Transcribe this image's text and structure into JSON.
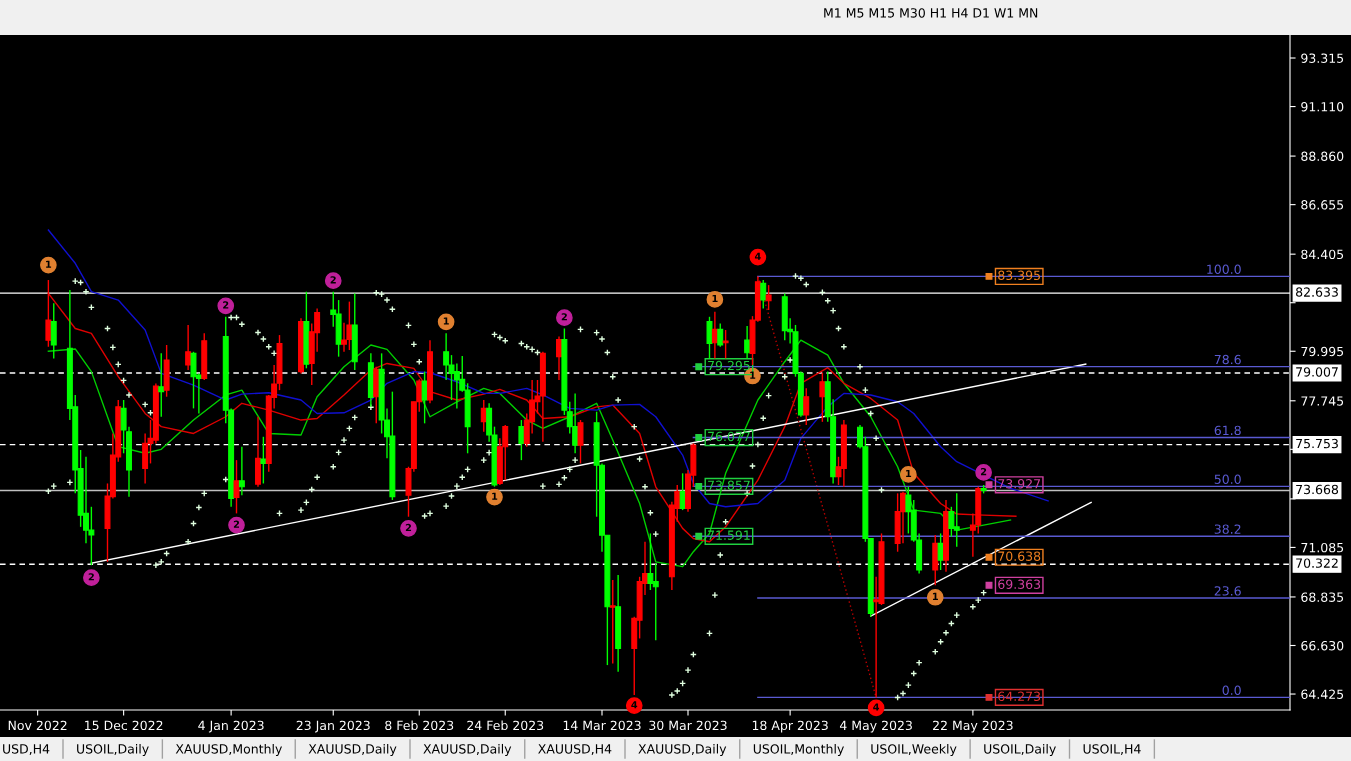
{
  "chart_data": {
    "type": "candlestick",
    "subtitle": "M1 M5 M15 M30 H1 H4 D1 W1 MN",
    "annotations": [
      "USD,H4",
      "USOIL,Daily",
      "XAUUSD,Monthly",
      "XAUUSD,Daily",
      "XAUUSD,Daily",
      "XAUUSD,H4",
      "XAUUSD,Daily",
      "USOIL,Monthly",
      "USOIL,Weekly",
      "USOIL,Daily",
      "USOIL,H4",
      {
        "text": "1",
        "x": "2022-12-01",
        "y": 83.91
      },
      {
        "text": "1",
        "x": "2023-02-13",
        "y": 81.33
      },
      {
        "text": "1",
        "x": "2023-02-22",
        "y": 73.37
      },
      {
        "text": "1",
        "x": "2023-04-04",
        "y": 82.35
      },
      {
        "text": "1",
        "x": "2023-04-11",
        "y": 78.87
      },
      {
        "text": "1",
        "x": "2023-05-10",
        "y": 74.4
      },
      {
        "text": "1",
        "x": "2023-05-15",
        "y": 68.82
      },
      {
        "text": "2",
        "x": "2022-12-09",
        "y": 69.71
      },
      {
        "text": "2",
        "x": "2023-01-03",
        "y": 82.06
      },
      {
        "text": "2",
        "x": "2023-01-05",
        "y": 72.1
      },
      {
        "text": "2",
        "x": "2023-01-23",
        "y": 83.2
      },
      {
        "text": "2",
        "x": "2023-02-06",
        "y": 71.95
      },
      {
        "text": "2",
        "x": "2023-03-07",
        "y": 81.52
      },
      {
        "text": "2",
        "x": "2023-05-24",
        "y": 74.49
      },
      {
        "text": "4",
        "x": "2023-03-20",
        "y": 63.9
      },
      {
        "text": "4",
        "x": "2023-04-12",
        "y": 84.27
      },
      {
        "text": "4",
        "x": "2023-05-04",
        "y": 63.8
      }
    ],
    "colors": [
      "#ff0000",
      "#00ff00",
      "#00ff00",
      "#00ff00",
      "#00ff00",
      "#00ff00",
      "#00ff00",
      "#ff0000",
      "#ff0000",
      "#ff0000",
      "#00ff00",
      "#00ff00",
      "#ff0000",
      "#ff0000",
      "#ff0000",
      "#00ff00",
      "#ff0000",
      "#ff0000",
      "#00ff00",
      "#00ff00",
      "#ff0000",
      "#00ff00",
      "#00ff00",
      "#ff0000",
      "#00ff00",
      "#ff0000",
      "#00ff00",
      "#ff0000",
      "#ff0000",
      "#ff0000",
      "#ff0000",
      "#00ff00",
      "#ff0000",
      "#ff0000",
      "#00ff00",
      "#00ff00",
      "#ff0000",
      "#ff0000",
      "#00ff00",
      "#00ff00",
      "#ff0000",
      "#00ff00",
      "#00ff00",
      "#00ff00",
      "#ff0000",
      "#ff0000",
      "#ff0000",
      "#00ff00",
      "#ff0000",
      "#00ff00",
      "#00ff00",
      "#00ff00",
      "#00ff00",
      "#00ff00",
      "#ff0000",
      "#00ff00",
      "#00ff00",
      "#ff0000",
      "#ff0000",
      "#00ff00",
      "#ff0000",
      "#ff0000",
      "#ff0000",
      "#ff0000",
      "#ff0000",
      "#00ff00",
      "#00ff00",
      "#00ff00",
      "#ff0000",
      "#00ff00",
      "#00ff00",
      "#00ff00",
      "#ff0000",
      "#00ff00",
      "#ff0000",
      "#ff0000",
      "#ff0000",
      "#00ff00",
      "#00ff00",
      "#ff0000",
      "#ff0000",
      "#00ff00",
      "#ff0000",
      "#ff0000",
      "#00ff00",
      "#ff0000",
      "#00ff00",
      "#ff0000",
      "#00ff00",
      "#ff0000",
      "#ff0000",
      "#00ff00",
      "#ff0000",
      "#00ff00",
      "#00ff00",
      "#00ff00",
      "#00ff00",
      "#ff0000",
      "#ff0000",
      "#00ff00",
      "#00ff00",
      "#ff0000",
      "#ff0000",
      "#00ff00",
      "#00ff00",
      "#00ff00",
      "#ff0000",
      "#ff0000",
      "#ff0000",
      "#ff0000",
      "#00ff00",
      "#00ff00",
      "#00ff00",
      "#ff0000",
      "#00ff00",
      "#ff0000",
      "#00ff00",
      "#00ff00",
      "#ff0000",
      "#ff0000",
      "#00ff00"
    ],
    "x": [
      "2022-12-01",
      "2022-12-02",
      "2022-12-05",
      "2022-12-06",
      "2022-12-07",
      "2022-12-08",
      "2022-12-09",
      "2022-12-12",
      "2022-12-13",
      "2022-12-14",
      "2022-12-15",
      "2022-12-16",
      "2022-12-19",
      "2022-12-20",
      "2022-12-21",
      "2022-12-22",
      "2022-12-23",
      "2022-12-27",
      "2022-12-28",
      "2022-12-29",
      "2022-12-30",
      "2023-01-03",
      "2023-01-04",
      "2023-01-05",
      "2023-01-06",
      "2023-01-09",
      "2023-01-10",
      "2023-01-11",
      "2023-01-12",
      "2023-01-13",
      "2023-01-17",
      "2023-01-18",
      "2023-01-19",
      "2023-01-20",
      "2023-01-23",
      "2023-01-24",
      "2023-01-25",
      "2023-01-26",
      "2023-01-27",
      "2023-01-30",
      "2023-01-31",
      "2023-02-01",
      "2023-02-02",
      "2023-02-03",
      "2023-02-06",
      "2023-02-07",
      "2023-02-08",
      "2023-02-09",
      "2023-02-10",
      "2023-02-13",
      "2023-02-14",
      "2023-02-15",
      "2023-02-16",
      "2023-02-17",
      "2023-02-20",
      "2023-02-21",
      "2023-02-22",
      "2023-02-23",
      "2023-02-24",
      "2023-02-27",
      "2023-02-28",
      "2023-03-01",
      "2023-03-02",
      "2023-03-03",
      "2023-03-06",
      "2023-03-07",
      "2023-03-08",
      "2023-03-09",
      "2023-03-10",
      "2023-03-13",
      "2023-03-14",
      "2023-03-15",
      "2023-03-16",
      "2023-03-17",
      "2023-03-20",
      "2023-03-21",
      "2023-03-22",
      "2023-03-23",
      "2023-03-24",
      "2023-03-27",
      "2023-03-28",
      "2023-03-29",
      "2023-03-30",
      "2023-03-31",
      "2023-04-03",
      "2023-04-04",
      "2023-04-05",
      "2023-04-06",
      "2023-04-10",
      "2023-04-11",
      "2023-04-12",
      "2023-04-13",
      "2023-04-14",
      "2023-04-17",
      "2023-04-18",
      "2023-04-19",
      "2023-04-20",
      "2023-04-21",
      "2023-04-24",
      "2023-04-25",
      "2023-04-26",
      "2023-04-27",
      "2023-04-28",
      "2023-05-01",
      "2023-05-02",
      "2023-05-03",
      "2023-05-04",
      "2023-05-05",
      "2023-05-08",
      "2023-05-09",
      "2023-05-10",
      "2023-05-11",
      "2023-05-12",
      "2023-05-15",
      "2023-05-16",
      "2023-05-17",
      "2023-05-18",
      "2023-05-19",
      "2023-05-22",
      "2023-05-23",
      "2023-05-24"
    ],
    "ohlc": [
      [
        80.5,
        83.23,
        80.2,
        81.41
      ],
      [
        81.34,
        82.17,
        79.67,
        80.28
      ],
      [
        80.13,
        82.78,
        76.87,
        77.4
      ],
      [
        77.47,
        78.01,
        73.54,
        74.6
      ],
      [
        74.67,
        75.51,
        72.02,
        72.55
      ],
      [
        72.63,
        75.2,
        71.27,
        71.87
      ],
      [
        71.87,
        72.93,
        70.28,
        71.65
      ],
      [
        71.95,
        73.99,
        70.43,
        73.42
      ],
      [
        73.39,
        76.26,
        73.31,
        75.28
      ],
      [
        75.2,
        77.78,
        74.98,
        77.47
      ],
      [
        77.4,
        77.78,
        75.36,
        76.42
      ],
      [
        76.34,
        76.57,
        73.39,
        74.6
      ],
      [
        74.67,
        76.26,
        73.99,
        75.81
      ],
      [
        75.81,
        76.87,
        74.9,
        76.04
      ],
      [
        75.96,
        78.53,
        75.81,
        78.41
      ],
      [
        78.38,
        79.9,
        77.02,
        78.16
      ],
      [
        78.23,
        80.28,
        77.93,
        79.6
      ],
      [
        79.37,
        81.19,
        79.14,
        79.97
      ],
      [
        79.9,
        79.97,
        77.4,
        78.84
      ],
      [
        78.91,
        78.99,
        77.17,
        78.76
      ],
      [
        78.76,
        80.81,
        78.69,
        80.47
      ],
      [
        80.66,
        81.56,
        76.72,
        77.32
      ],
      [
        77.32,
        77.4,
        72.93,
        73.31
      ],
      [
        73.36,
        75.05,
        72.63,
        74.11
      ],
      [
        74.11,
        75.66,
        73.46,
        73.84
      ],
      [
        73.96,
        77.02,
        73.84,
        75.13
      ],
      [
        75.1,
        76.11,
        73.99,
        74.9
      ],
      [
        74.9,
        78.01,
        74.52,
        77.96
      ],
      [
        77.9,
        79.37,
        77.4,
        78.51
      ],
      [
        78.54,
        80.73,
        78.23,
        80.35
      ],
      [
        79.07,
        81.49,
        78.99,
        81.34
      ],
      [
        81.34,
        82.7,
        79.22,
        79.41
      ],
      [
        79.44,
        81.26,
        78.46,
        80.88
      ],
      [
        80.84,
        81.94,
        79.97,
        81.75
      ],
      [
        81.87,
        82.7,
        81.11,
        81.67
      ],
      [
        81.69,
        82.32,
        79.75,
        80.32
      ],
      [
        80.32,
        81.29,
        79.97,
        80.5
      ],
      [
        80.53,
        82.25,
        80.05,
        81.19
      ],
      [
        81.19,
        82.62,
        79.14,
        79.52
      ],
      [
        79.47,
        79.9,
        77.47,
        77.9
      ],
      [
        77.93,
        79.29,
        76.72,
        79.17
      ],
      [
        79.17,
        79.9,
        76.26,
        76.87
      ],
      [
        76.87,
        77.4,
        75.13,
        76.11
      ],
      [
        76.14,
        78.16,
        73.24,
        73.39
      ],
      [
        73.46,
        74.75,
        72.48,
        74.67
      ],
      [
        74.67,
        77.7,
        74.52,
        77.7
      ],
      [
        77.7,
        78.72,
        77.25,
        78.64
      ],
      [
        78.64,
        79.07,
        76.72,
        77.78
      ],
      [
        77.78,
        80.5,
        77.63,
        79.97
      ],
      [
        79.97,
        80.81,
        78.69,
        79.37
      ],
      [
        79.37,
        79.82,
        77.78,
        78.99
      ],
      [
        79.07,
        79.44,
        77.4,
        78.69
      ],
      [
        78.72,
        79.78,
        78.16,
        78.23
      ],
      [
        78.23,
        78.54,
        75.36,
        76.57
      ],
      [
        76.8,
        77.78,
        76.34,
        77.4
      ],
      [
        77.4,
        77.63,
        75.89,
        76.19
      ],
      [
        76.19,
        76.57,
        73.84,
        73.92
      ],
      [
        73.99,
        76.04,
        73.92,
        75.66
      ],
      [
        75.66,
        76.64,
        74.14,
        76.57
      ],
      [
        76.57,
        76.87,
        75.05,
        75.81
      ],
      [
        75.81,
        77.17,
        75.66,
        76.87
      ],
      [
        76.8,
        78.69,
        76.26,
        77.78
      ],
      [
        77.7,
        78.69,
        77.17,
        77.96
      ],
      [
        77.96,
        79.97,
        75.89,
        79.9
      ],
      [
        79.75,
        80.66,
        78.69,
        80.53
      ],
      [
        80.53,
        81.03,
        77.1,
        77.32
      ],
      [
        77.25,
        77.7,
        76.26,
        76.57
      ],
      [
        76.57,
        78.08,
        75.36,
        75.73
      ],
      [
        75.73,
        76.87,
        74.9,
        76.75
      ],
      [
        76.75,
        77.25,
        72.48,
        74.82
      ],
      [
        74.82,
        74.9,
        70.89,
        71.64
      ],
      [
        71.64,
        71.64,
        65.74,
        68.39
      ],
      [
        68.37,
        69.6,
        65.81,
        68.43
      ],
      [
        68.39,
        69.83,
        65.44,
        66.5
      ],
      [
        66.5,
        67.93,
        64.38,
        67.86
      ],
      [
        67.78,
        69.75,
        66.95,
        69.53
      ],
      [
        69.45,
        71.34,
        68.92,
        69.9
      ],
      [
        69.9,
        71.72,
        69.15,
        69.45
      ],
      [
        69.53,
        70.36,
        66.87,
        69.3
      ],
      [
        69.75,
        73.16,
        69.15,
        73.01
      ],
      [
        72.86,
        73.92,
        72.25,
        73.62
      ],
      [
        73.62,
        74.45,
        72.78,
        72.86
      ],
      [
        72.86,
        74.6,
        72.71,
        74.42
      ],
      [
        74.37,
        75.81,
        73.84,
        75.73
      ],
      [
        81.34,
        81.56,
        79.67,
        80.35
      ],
      [
        80.38,
        81.79,
        79.67,
        80.99
      ],
      [
        80.99,
        81.26,
        80.2,
        80.28
      ],
      [
        80.38,
        80.96,
        79.67,
        80.46
      ],
      [
        80.5,
        81.14,
        79.67,
        79.93
      ],
      [
        79.9,
        81.59,
        79.37,
        81.41
      ],
      [
        81.41,
        83.39,
        81.34,
        83.15
      ],
      [
        83.08,
        83.23,
        81.94,
        82.32
      ],
      [
        82.29,
        83.0,
        81.87,
        82.55
      ],
      [
        82.47,
        82.62,
        80.5,
        80.93
      ],
      [
        80.99,
        81.49,
        80.35,
        80.88
      ],
      [
        80.88,
        81.19,
        78.84,
        78.99
      ],
      [
        78.99,
        79.07,
        77.02,
        77.1
      ],
      [
        77.1,
        78.31,
        76.64,
        77.93
      ],
      [
        77.93,
        79.02,
        76.79,
        78.61
      ],
      [
        78.61,
        79.07,
        76.79,
        77.02
      ],
      [
        77.02,
        77.81,
        73.99,
        74.3
      ],
      [
        74.3,
        75.2,
        73.92,
        74.75
      ],
      [
        74.67,
        76.87,
        73.84,
        76.64
      ],
      [
        76.54,
        76.64,
        75.58,
        75.66
      ],
      [
        75.66,
        76.11,
        71.34,
        71.49
      ],
      [
        71.49,
        71.49,
        67.94,
        68.09
      ],
      [
        68.62,
        69.75,
        64.27,
        68.7
      ],
      [
        68.54,
        71.72,
        68.47,
        71.34
      ],
      [
        71.27,
        73.54,
        70.89,
        72.71
      ],
      [
        72.71,
        73.61,
        71.27,
        73.54
      ],
      [
        73.46,
        73.84,
        71.72,
        72.71
      ],
      [
        72.78,
        73.24,
        71.34,
        71.42
      ],
      [
        71.42,
        71.72,
        69.9,
        70.06
      ],
      [
        70.06,
        71.65,
        69.37,
        71.27
      ],
      [
        71.27,
        71.72,
        70.06,
        70.51
      ],
      [
        70.51,
        73.24,
        69.98,
        72.71
      ],
      [
        72.71,
        72.93,
        71.57,
        71.95
      ],
      [
        72.02,
        73.54,
        71.11,
        71.87
      ],
      [
        71.87,
        72.63,
        70.66,
        72.1
      ],
      [
        72.1,
        73.84,
        71.72,
        73.76
      ],
      [
        73.76,
        73.92,
        73.54,
        73.67
      ]
    ],
    "series": [
      {
        "type": "line",
        "color": "#00d000",
        "x": [
          "2022-12-01",
          "2022-12-06",
          "2022-12-09",
          "2022-12-14",
          "2022-12-19",
          "2022-12-22",
          "2022-12-28",
          "2023-01-03",
          "2023-01-06",
          "2023-01-11",
          "2023-01-17",
          "2023-01-20",
          "2023-01-25",
          "2023-01-30",
          "2023-02-02",
          "2023-02-07",
          "2023-02-10",
          "2023-02-15",
          "2023-02-20",
          "2023-02-23",
          "2023-02-28",
          "2023-03-03",
          "2023-03-08",
          "2023-03-13",
          "2023-03-16",
          "2023-03-21",
          "2023-03-24",
          "2023-03-29",
          "2023-03-31",
          "2023-04-03",
          "2023-04-06",
          "2023-04-12",
          "2023-04-17",
          "2023-04-20",
          "2023-04-25",
          "2023-04-28",
          "2023-05-03",
          "2023-05-08",
          "2023-05-11",
          "2023-05-16",
          "2023-05-19",
          "2023-05-24",
          "2023-05-29"
        ],
        "values": [
          80.0,
          80.1,
          79.07,
          75.66,
          75.36,
          75.54,
          76.87,
          78.01,
          78.23,
          76.26,
          76.19,
          77.93,
          79.29,
          80.28,
          80.08,
          78.69,
          77.02,
          77.7,
          78.31,
          78.08,
          76.87,
          76.49,
          77.02,
          77.63,
          75.96,
          73.08,
          70.43,
          70.21,
          70.89,
          71.72,
          74.45,
          77.78,
          79.52,
          80.5,
          79.82,
          78.54,
          77.02,
          74.75,
          72.78,
          72.63,
          71.87,
          72.1,
          72.33
        ]
      },
      {
        "type": "line",
        "color": "#e00000",
        "x": [
          "2022-12-01",
          "2022-12-06",
          "2022-12-09",
          "2022-12-14",
          "2022-12-19",
          "2022-12-22",
          "2022-12-28",
          "2023-01-03",
          "2023-01-06",
          "2023-01-11",
          "2023-01-17",
          "2023-01-20",
          "2023-01-25",
          "2023-01-30",
          "2023-02-02",
          "2023-02-07",
          "2023-02-10",
          "2023-02-15",
          "2023-02-20",
          "2023-02-23",
          "2023-02-28",
          "2023-03-03",
          "2023-03-08",
          "2023-03-13",
          "2023-03-16",
          "2023-03-21",
          "2023-03-24",
          "2023-03-29",
          "2023-03-31",
          "2023-04-03",
          "2023-04-06",
          "2023-04-12",
          "2023-04-17",
          "2023-04-20",
          "2023-04-25",
          "2023-04-28",
          "2023-05-03",
          "2023-05-08",
          "2023-05-11",
          "2023-05-16",
          "2023-05-19",
          "2023-05-24",
          "2023-05-30"
        ],
        "values": [
          82.62,
          81.03,
          80.81,
          78.84,
          77.17,
          76.57,
          76.26,
          77.02,
          77.63,
          77.32,
          76.87,
          76.94,
          78.01,
          79.14,
          79.44,
          79.22,
          78.16,
          77.78,
          78.05,
          78.26,
          77.78,
          76.94,
          77.02,
          77.47,
          77.55,
          76.26,
          73.84,
          71.95,
          71.49,
          71.34,
          72.02,
          74.14,
          76.57,
          78.54,
          79.25,
          78.54,
          77.85,
          76.87,
          74.45,
          73.08,
          72.6,
          72.55,
          72.5
        ]
      },
      {
        "type": "line",
        "color": "#1010d0",
        "x": [
          "2022-12-01",
          "2022-12-06",
          "2022-12-09",
          "2022-12-14",
          "2022-12-19",
          "2022-12-22",
          "2022-12-28",
          "2023-01-03",
          "2023-01-06",
          "2023-01-11",
          "2023-01-17",
          "2023-01-20",
          "2023-01-25",
          "2023-01-30",
          "2023-02-02",
          "2023-02-07",
          "2023-02-10",
          "2023-02-15",
          "2023-02-20",
          "2023-02-23",
          "2023-02-28",
          "2023-03-03",
          "2023-03-08",
          "2023-03-13",
          "2023-03-16",
          "2023-03-21",
          "2023-03-24",
          "2023-03-29",
          "2023-03-31",
          "2023-04-03",
          "2023-04-06",
          "2023-04-12",
          "2023-04-17",
          "2023-04-20",
          "2023-04-25",
          "2023-04-28",
          "2023-05-03",
          "2023-05-08",
          "2023-05-11",
          "2023-05-16",
          "2023-05-19",
          "2023-05-24",
          "2023-05-29",
          "2023-06-05"
        ],
        "values": [
          85.5,
          83.99,
          82.7,
          82.32,
          80.96,
          78.99,
          78.46,
          77.78,
          78.05,
          78.11,
          77.78,
          77.17,
          77.2,
          77.78,
          78.54,
          79.07,
          79.02,
          78.61,
          78.08,
          78.08,
          78.31,
          78.01,
          77.4,
          77.32,
          77.55,
          77.58,
          77.02,
          75.28,
          73.99,
          73.08,
          72.93,
          73.08,
          74.14,
          76.04,
          77.48,
          78.08,
          78.01,
          77.7,
          77.17,
          75.66,
          74.98,
          null,
          73.77,
          73.2
        ]
      },
      {
        "type": "scatter",
        "color": "#e0ffe0",
        "marker": "cross",
        "values": [
          73.64,
          73.87,
          74.04,
          83.18,
          83.12,
          82.7,
          81.99,
          81.03,
          80.17,
          79.4,
          78.67,
          78.01,
          77.58,
          77.2,
          70.28,
          70.43,
          70.81,
          71.34,
          72.17,
          72.9,
          73.54,
          74.17,
          81.53,
          81.53,
          81.22,
          80.85,
          80.55,
          80.2,
          79.9,
          72.63,
          72.78,
          73.13,
          73.72,
          74.27,
          74.75,
          75.4,
          75.96,
          76.49,
          76.99,
          77.45,
          82.65,
          82.59,
          82.32,
          81.9,
          81.17,
          80.31,
          79.52,
          72.51,
          72.63,
          72.96,
          73.42,
          73.87,
          74.27,
          74.63,
          75.05,
          75.39,
          80.76,
          80.62,
          80.47,
          80.35,
          80.2,
          80.08,
          79.94,
          73.87,
          73.95,
          74.25,
          74.63,
          75.05,
          80.99,
          80.84,
          80.55,
          79.94,
          78.84,
          77.78,
          76.57,
          75.1,
          73.84,
          72.66,
          71.69,
          64.38,
          64.56,
          64.91,
          65.51,
          66.22,
          67.18,
          68.92,
          70.74,
          72.25,
          73.54,
          74.78,
          75.76,
          76.95,
          77.98,
          78.84,
          79.6,
          83.41,
          83.31,
          83.03,
          82.67,
          82.29,
          81.84,
          81.03,
          80.2,
          79.29,
          78.23,
          77.17,
          76.04,
          73.69,
          64.27,
          64.45,
          64.83,
          65.36,
          65.85,
          66.35,
          66.8,
          67.21,
          67.63,
          68.01,
          68.39,
          68.69,
          69.03
        ]
      },
      {
        "type": "line",
        "color": "#ffffff",
        "x": [
          "2022-12-09",
          "2023-06-12"
        ],
        "values": [
          70.37,
          79.41
        ]
      },
      {
        "type": "line",
        "color": "#ffffff",
        "x": [
          "2023-05-03",
          "2023-06-13"
        ],
        "values": [
          67.97,
          73.13
        ]
      },
      {
        "type": "line",
        "color": "#c00000",
        "line_style": "dotted",
        "x": [
          "2023-04-12",
          "2023-05-04"
        ],
        "values": [
          83.39,
          64.27
        ]
      },
      {
        "type": "line",
        "name": "100.0",
        "color": "#5a5ad2",
        "x": [
          "2023-04-12",
          "2023-07-20"
        ],
        "values": [
          83.395,
          83.395
        ]
      },
      {
        "type": "line",
        "name": "78.6",
        "color": "#5a5ad2",
        "x": [
          "2023-03-31",
          "2023-07-20"
        ],
        "values": [
          79.295,
          79.295
        ]
      },
      {
        "type": "line",
        "name": "61.8",
        "color": "#5a5ad2",
        "x": [
          "2023-03-31",
          "2023-07-20"
        ],
        "values": [
          76.077,
          76.077
        ]
      },
      {
        "type": "line",
        "name": "50.0",
        "color": "#5a5ad2",
        "x": [
          "2023-03-31",
          "2023-07-20"
        ],
        "values": [
          73.857,
          73.857
        ]
      },
      {
        "type": "line",
        "name": "38.2",
        "color": "#5a5ad2",
        "x": [
          "2023-03-31",
          "2023-07-20"
        ],
        "values": [
          71.591,
          71.591
        ]
      },
      {
        "type": "line",
        "name": "23.6",
        "color": "#5a5ad2",
        "x": [
          "2023-04-12",
          "2023-07-20"
        ],
        "values": [
          68.786,
          68.786
        ]
      },
      {
        "type": "line",
        "name": "0.0",
        "color": "#5a5ad2",
        "x": [
          "2023-04-12",
          "2023-07-20"
        ],
        "values": [
          64.273,
          64.273
        ]
      },
      {
        "type": "scatter",
        "color": "#20d040",
        "marker": "square",
        "x": [
          "2023-04-01",
          "2023-04-01",
          "2023-04-01",
          "2023-04-01"
        ],
        "values": [
          79.295,
          76.077,
          73.857,
          71.591
        ],
        "value_labels": [
          "79.295",
          "76.077",
          "73.857",
          "71.591"
        ]
      },
      {
        "type": "scatter",
        "color": "#f08020",
        "marker": "square",
        "x": [
          "2023-05-25",
          "2023-05-25"
        ],
        "values": [
          83.395,
          70.638
        ],
        "value_labels": [
          "83.395",
          "70.638"
        ]
      },
      {
        "type": "scatter",
        "color": "#d040a0",
        "marker": "square",
        "x": [
          "2023-05-25",
          "2023-05-25"
        ],
        "values": [
          73.927,
          69.363
        ],
        "value_labels": [
          "73.927",
          "69.363"
        ]
      },
      {
        "type": "scatter",
        "color": "#e03030",
        "marker": "square",
        "x": [
          "2023-05-25"
        ],
        "values": [
          64.273
        ],
        "value_labels": [
          "64.273"
        ]
      },
      {
        "type": "scatter",
        "color": "#e08030",
        "marker": "circle",
        "x": [
          "2022-12-01",
          "2023-02-13",
          "2023-02-22",
          "2023-04-04",
          "2023-04-11",
          "2023-05-10",
          "2023-05-15"
        ],
        "values": [
          83.91,
          81.33,
          73.37,
          82.35,
          78.87,
          74.4,
          68.82
        ]
      },
      {
        "type": "scatter",
        "color": "#c0209a",
        "marker": "circle",
        "x": [
          "2022-12-09",
          "2023-01-03",
          "2023-01-05",
          "2023-01-23",
          "2023-02-06",
          "2023-03-07",
          "2023-05-24"
        ],
        "values": [
          69.71,
          82.06,
          72.1,
          83.2,
          71.95,
          81.52,
          74.49
        ]
      },
      {
        "type": "scatter",
        "color": "#ff0000",
        "marker": "circle",
        "x": [
          "2023-03-20",
          "2023-04-12",
          "2023-05-04"
        ],
        "values": [
          63.9,
          84.27,
          63.8
        ]
      }
    ],
    "ref_lines": [
      {
        "axis": "y",
        "value": 82.633,
        "label": "82.633",
        "color": "#ffffff",
        "line_style": "solid"
      },
      {
        "axis": "y",
        "value": 79.007,
        "label": "79.007",
        "color": "#ffffff",
        "line_style": "dashed"
      },
      {
        "axis": "y",
        "value": 75.753,
        "label": "75.753",
        "color": "#ffffff",
        "line_style": "dashed"
      },
      {
        "axis": "y",
        "value": 73.668,
        "label": "73.668",
        "color": "#c0c0c0",
        "line_style": "solid"
      },
      {
        "axis": "y",
        "value": 70.322,
        "label": "70.322",
        "color": "#ffffff",
        "line_style": "dashed"
      }
    ],
    "legend": "right",
    "xlim": [
      "2022-11-22",
      "2023-07-20"
    ],
    "xticks": [
      {
        "value": "2022-11-29",
        "label": "Nov 2022"
      },
      {
        "value": "2022-12-15",
        "label": "15 Dec 2022"
      },
      {
        "value": "2023-01-04",
        "label": "4 Jan 2023"
      },
      {
        "value": "2023-01-23",
        "label": "23 Jan 2023"
      },
      {
        "value": "2023-02-08",
        "label": "8 Feb 2023"
      },
      {
        "value": "2023-02-24",
        "label": "24 Feb 2023"
      },
      {
        "value": "2023-03-14",
        "label": "14 Mar 2023"
      },
      {
        "value": "2023-03-30",
        "label": "30 Mar 2023"
      },
      {
        "value": "2023-04-18",
        "label": "18 Apr 2023"
      },
      {
        "value": "2023-05-04",
        "label": "4 May 2023"
      },
      {
        "value": "2023-05-22",
        "label": "22 May 2023"
      }
    ],
    "ylim": [
      63.7,
      94.36
    ],
    "yticks": [
      93.315,
      {
        "value": 91.11,
        "label": "91.110"
      },
      {
        "value": 88.86,
        "label": "88.860"
      },
      86.655,
      84.405,
      {
        "value": 82.2,
        "label": null
      },
      79.995,
      77.745,
      {
        "value": 75.54,
        "label": null
      },
      {
        "value": 73.29,
        "label": null
      },
      71.085,
      68.835,
      {
        "value": 66.63,
        "label": "66.630"
      },
      64.425
    ]
  }
}
